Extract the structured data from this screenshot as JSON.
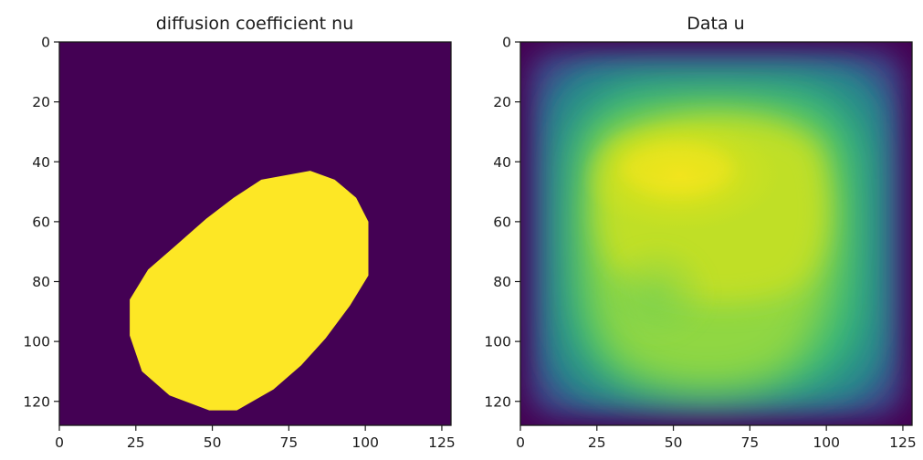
{
  "chart_data": [
    {
      "type": "heatmap",
      "title": "diffusion coefficient nu",
      "xlabel": "",
      "ylabel": "",
      "xlim": [
        0,
        128
      ],
      "ylim": [
        128,
        0
      ],
      "xticks": [
        0,
        25,
        50,
        75,
        100,
        125
      ],
      "yticks": [
        0,
        20,
        40,
        60,
        80,
        100,
        120
      ],
      "colormap": "viridis",
      "values": "binary field: 1 inside an egg-shaped region, 0 elsewhere",
      "region_boundary": [
        [
          82,
          43
        ],
        [
          90,
          46
        ],
        [
          97,
          52
        ],
        [
          101,
          60
        ],
        [
          101,
          78
        ],
        [
          95,
          88
        ],
        [
          87,
          99
        ],
        [
          79,
          108
        ],
        [
          70,
          116
        ],
        [
          58,
          123
        ],
        [
          49,
          123
        ],
        [
          36,
          118
        ],
        [
          27,
          110
        ],
        [
          23,
          98
        ],
        [
          23,
          86
        ],
        [
          29,
          76
        ],
        [
          38,
          68
        ],
        [
          48,
          59
        ],
        [
          57,
          52
        ],
        [
          66,
          46
        ]
      ],
      "colors": {
        "low": "#440154",
        "high": "#fde725"
      },
      "grid": false
    },
    {
      "type": "heatmap",
      "title": "Data u",
      "xlabel": "",
      "ylabel": "",
      "xlim": [
        0,
        128
      ],
      "ylim": [
        128,
        0
      ],
      "xticks": [
        0,
        25,
        50,
        75,
        100,
        125
      ],
      "yticks": [
        0,
        20,
        40,
        60,
        80,
        100,
        120
      ],
      "colormap": "viridis",
      "values": "smooth field, 0 at the square boundary, maximum near (52, 42)",
      "peak": [
        52,
        42
      ],
      "grid": false
    }
  ]
}
